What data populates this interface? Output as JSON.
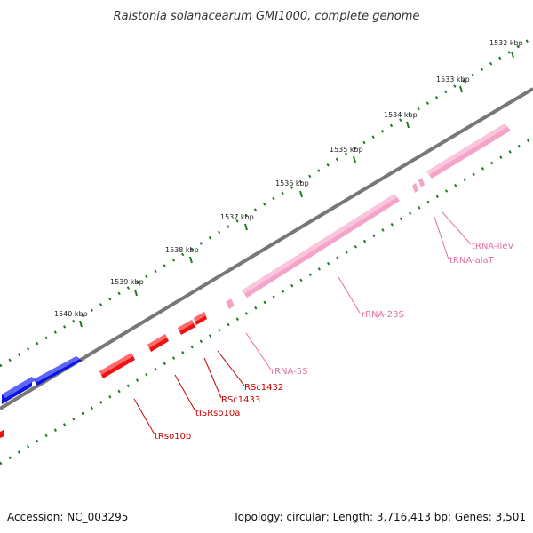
{
  "title": "Ralstonia solanacearum GMI1000, complete genome",
  "footer": {
    "accession": "Accession: NC_003295",
    "topology": "Topology: circular; Length: 3,716,413 bp; Genes: 3,501"
  },
  "colors": {
    "backbone": "#7a7a7a",
    "tick": "#1f7a1f",
    "blue_gene": "#0a14e6",
    "red_gene": "#f01010",
    "rna": "#f5a3c8",
    "label_red": "#cc0000",
    "label_pink": "#e26fa3"
  },
  "kbp_labels": [
    "1532 kbp",
    "1533 kbp",
    "1534 kbp",
    "1535 kbp",
    "1536 kbp",
    "1537 kbp",
    "1538 kbp",
    "1539 kbp",
    "1540 kbp"
  ],
  "features": [
    {
      "name": "tRso10b",
      "kind": "red"
    },
    {
      "name": "tISRso10a",
      "kind": "red"
    },
    {
      "name": "RSc1433",
      "kind": "red"
    },
    {
      "name": "RSc1432",
      "kind": "red"
    },
    {
      "name": "rRNA-5S",
      "kind": "rna"
    },
    {
      "name": "rRNA-23S",
      "kind": "rna"
    },
    {
      "name": "tRNA-alaT",
      "kind": "rna"
    },
    {
      "name": "tRNA-IleV",
      "kind": "rna"
    }
  ]
}
